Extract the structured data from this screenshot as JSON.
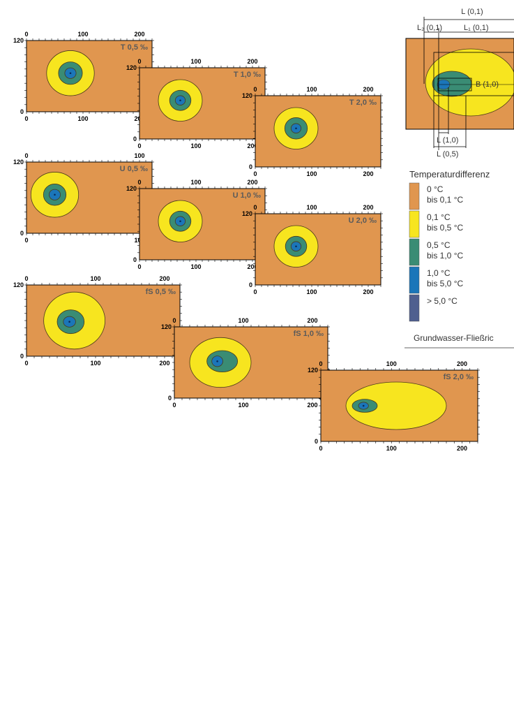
{
  "colors": {
    "background": "#e0964f",
    "c1": "#f7e51f",
    "c2": "#3a8c74",
    "c3": "#1b76b9",
    "c4": "#4f5f8f",
    "outline": "#4a3a1a",
    "axis": "#000000",
    "label": "#5a5a5a"
  },
  "panels": [
    {
      "label": "T 0,5 ‰",
      "xticks": [
        "0",
        "100",
        "200"
      ],
      "yticks": [
        "0",
        "120"
      ],
      "ellipses": [
        {
          "cls": "c1",
          "cx": 70,
          "cy": 55,
          "rx": 38,
          "ry": 38
        },
        {
          "cls": "c2",
          "cx": 70,
          "cy": 55,
          "rx": 19,
          "ry": 19
        },
        {
          "cls": "c3",
          "cx": 70,
          "cy": 55,
          "rx": 9,
          "ry": 9
        }
      ]
    },
    {
      "label": "T 1,0 ‰",
      "xticks": [
        "0",
        "100",
        "200"
      ],
      "yticks": [
        "0",
        "120"
      ],
      "ellipses": [
        {
          "cls": "c1",
          "cx": 65,
          "cy": 55,
          "rx": 35,
          "ry": 35
        },
        {
          "cls": "c2",
          "cx": 65,
          "cy": 55,
          "rx": 17,
          "ry": 17
        },
        {
          "cls": "c3",
          "cx": 65,
          "cy": 55,
          "rx": 8,
          "ry": 8
        }
      ]
    },
    {
      "label": "T 2,0 ‰",
      "xticks": [
        "0",
        "100",
        "200"
      ],
      "yticks": [
        "0",
        "120"
      ],
      "ellipses": [
        {
          "cls": "c1",
          "cx": 65,
          "cy": 55,
          "rx": 35,
          "ry": 35
        },
        {
          "cls": "c2",
          "cx": 65,
          "cy": 55,
          "rx": 18,
          "ry": 18
        },
        {
          "cls": "c3",
          "cx": 65,
          "cy": 55,
          "rx": 8,
          "ry": 8
        }
      ]
    },
    {
      "label": "U 0,5 ‰",
      "xticks": [
        "0",
        "100"
      ],
      "yticks": [
        "0",
        "120"
      ],
      "ellipses": [
        {
          "cls": "c1",
          "cx": 45,
          "cy": 55,
          "rx": 38,
          "ry": 38
        },
        {
          "cls": "c2",
          "cx": 45,
          "cy": 55,
          "rx": 18,
          "ry": 18
        },
        {
          "cls": "c3",
          "cx": 45,
          "cy": 55,
          "rx": 9,
          "ry": 9
        }
      ]
    },
    {
      "label": "U 1,0 ‰",
      "xticks": [
        "0",
        "100",
        "200"
      ],
      "yticks": [
        "0",
        "120"
      ],
      "ellipses": [
        {
          "cls": "c1",
          "cx": 65,
          "cy": 55,
          "rx": 35,
          "ry": 35
        },
        {
          "cls": "c2",
          "cx": 65,
          "cy": 55,
          "rx": 17,
          "ry": 17
        },
        {
          "cls": "c3",
          "cx": 65,
          "cy": 55,
          "rx": 8,
          "ry": 8
        }
      ]
    },
    {
      "label": "U 2,0 ‰",
      "xticks": [
        "0",
        "100",
        "200"
      ],
      "yticks": [
        "0",
        "120"
      ],
      "ellipses": [
        {
          "cls": "c1",
          "cx": 65,
          "cy": 55,
          "rx": 35,
          "ry": 35
        },
        {
          "cls": "c2",
          "cx": 65,
          "cy": 55,
          "rx": 17,
          "ry": 17
        },
        {
          "cls": "c3",
          "cx": 65,
          "cy": 55,
          "rx": 8,
          "ry": 8
        }
      ]
    },
    {
      "label": "fS 0,5 ‰",
      "xticks": [
        "0",
        "100",
        "200"
      ],
      "yticks": [
        "0",
        "120"
      ],
      "ellipses": [
        {
          "cls": "c1",
          "cx": 78,
          "cy": 60,
          "rx": 50,
          "ry": 48
        },
        {
          "cls": "c2",
          "cx": 72,
          "cy": 62,
          "rx": 22,
          "ry": 20
        },
        {
          "cls": "c3",
          "cx": 70,
          "cy": 62,
          "rx": 10,
          "ry": 9
        }
      ]
    },
    {
      "label": "fS 1,0 ‰",
      "xticks": [
        "0",
        "100",
        "200"
      ],
      "yticks": [
        "0",
        "120"
      ],
      "ellipses": [
        {
          "cls": "c1",
          "cx": 75,
          "cy": 60,
          "rx": 50,
          "ry": 42
        },
        {
          "cls": "c2",
          "cx": 78,
          "cy": 58,
          "rx": 25,
          "ry": 18
        },
        {
          "cls": "c3",
          "cx": 70,
          "cy": 58,
          "rx": 9,
          "ry": 9
        }
      ]
    },
    {
      "label": "fS 2,0 ‰",
      "xticks": [
        "0",
        "100",
        "200"
      ],
      "yticks": [
        "0",
        "120"
      ],
      "ellipses": [
        {
          "cls": "c1",
          "cx": 120,
          "cy": 60,
          "rx": 80,
          "ry": 40
        },
        {
          "cls": "c2",
          "cx": 70,
          "cy": 60,
          "rx": 20,
          "ry": 11
        },
        {
          "cls": "c3",
          "cx": 68,
          "cy": 60,
          "rx": 8,
          "ry": 6
        }
      ]
    }
  ],
  "legend": {
    "title": "Temperaturdifferenz",
    "items": [
      {
        "line1": "0 °C",
        "line2": "bis 0,1 °C",
        "color": "#e0964f"
      },
      {
        "line1": "0,1 °C",
        "line2": "bis 0,5 °C",
        "color": "#f7e51f"
      },
      {
        "line1": "0,5 °C",
        "line2": "bis 1,0 °C",
        "color": "#3a8c74"
      },
      {
        "line1": "1,0 °C",
        "line2": "bis 5,0 °C",
        "color": "#1b76b9"
      },
      {
        "line1": "> 5,0 °C",
        "line2": "",
        "color": "#4f5f8f"
      }
    ],
    "flow_label": "Grundwasser-Fließric"
  },
  "schematic": {
    "l01": "L (0,1)",
    "l2_01": "L₂ (0,1)",
    "l1_01": "L₁ (0,1)",
    "b10": "B (1,0)",
    "l10": "L (1,0)",
    "l05": "L (0,5)"
  }
}
